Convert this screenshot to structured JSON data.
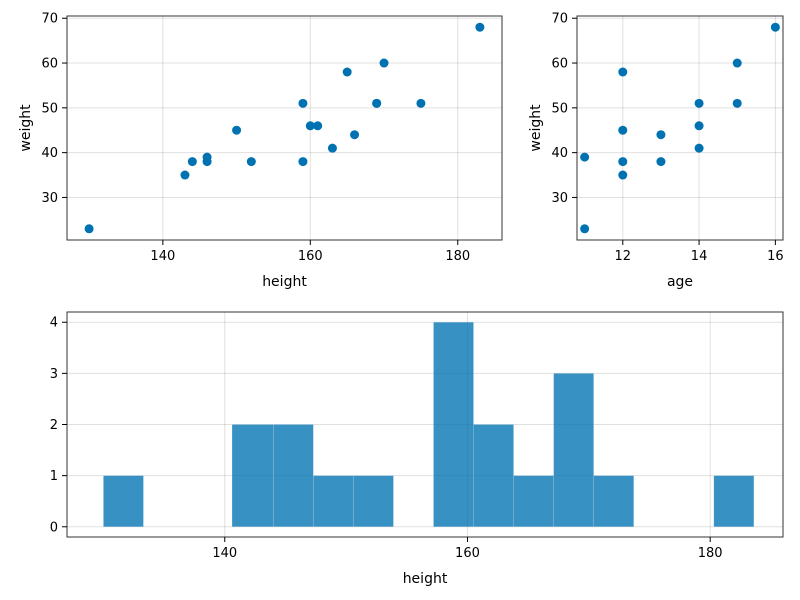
{
  "chart_data": [
    {
      "type": "scatter",
      "xlabel": "height",
      "ylabel": "weight",
      "xlim": [
        127,
        186
      ],
      "ylim": [
        20.5,
        70.5
      ],
      "xticks": [
        140,
        160,
        180
      ],
      "yticks": [
        30,
        40,
        50,
        60,
        70
      ],
      "color": "#0072b2",
      "points": [
        [
          130,
          23
        ],
        [
          143,
          35
        ],
        [
          144,
          38
        ],
        [
          146,
          39
        ],
        [
          146,
          38
        ],
        [
          150,
          45
        ],
        [
          152,
          38
        ],
        [
          159,
          51
        ],
        [
          159,
          38
        ],
        [
          160,
          46
        ],
        [
          161,
          46
        ],
        [
          163,
          41
        ],
        [
          165,
          58
        ],
        [
          166,
          44
        ],
        [
          169,
          51
        ],
        [
          169,
          51
        ],
        [
          170,
          60
        ],
        [
          175,
          51
        ],
        [
          183,
          68
        ]
      ]
    },
    {
      "type": "scatter",
      "xlabel": "age",
      "ylabel": "weight",
      "xlim": [
        10.8,
        16.2
      ],
      "ylim": [
        20.5,
        70.5
      ],
      "xticks": [
        12,
        14,
        16
      ],
      "yticks": [
        30,
        40,
        50,
        60,
        70
      ],
      "color": "#0072b2",
      "points": [
        [
          11,
          39
        ],
        [
          11,
          23
        ],
        [
          12,
          58
        ],
        [
          12,
          45
        ],
        [
          12,
          38
        ],
        [
          12,
          35
        ],
        [
          13,
          44
        ],
        [
          13,
          38
        ],
        [
          14,
          51
        ],
        [
          14,
          46
        ],
        [
          14,
          41
        ],
        [
          15,
          60
        ],
        [
          15,
          51
        ],
        [
          16,
          68
        ]
      ]
    },
    {
      "type": "bar",
      "xlabel": "height",
      "ylabel": "",
      "xlim": [
        127,
        186
      ],
      "ylim": [
        -0.2,
        4.2
      ],
      "xticks": [
        140,
        160,
        180
      ],
      "yticks": [
        0,
        1,
        2,
        3,
        4
      ],
      "color": "#0072b2",
      "bins": [
        [
          130,
          133.3,
          1
        ],
        [
          133.3,
          136.5,
          0
        ],
        [
          136.5,
          139.8,
          0
        ],
        [
          139.8,
          143.0,
          0
        ],
        [
          140.6,
          144.0,
          2
        ],
        [
          144.0,
          147.3,
          2
        ],
        [
          147.3,
          150.6,
          1
        ],
        [
          150.6,
          153.9,
          1
        ],
        [
          153.9,
          157.2,
          0
        ],
        [
          157.2,
          160.5,
          4
        ],
        [
          160.5,
          163.8,
          2
        ],
        [
          163.8,
          167.1,
          1
        ],
        [
          167.1,
          170.4,
          3
        ],
        [
          170.4,
          173.7,
          1
        ],
        [
          173.7,
          177.0,
          0
        ],
        [
          177.0,
          180.3,
          0
        ],
        [
          180.3,
          183.6,
          1
        ]
      ]
    }
  ]
}
